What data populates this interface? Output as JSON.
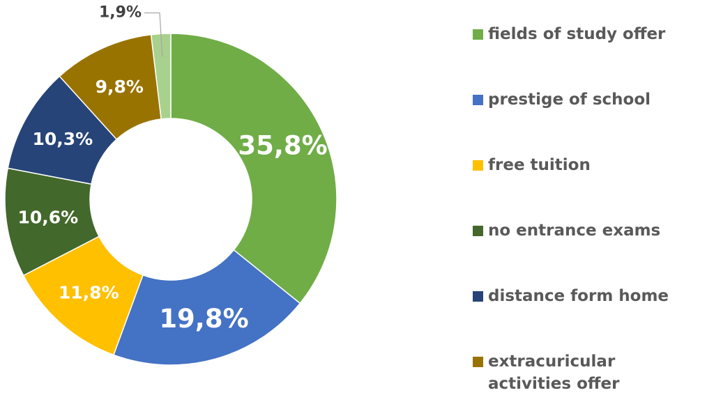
{
  "chart_data": {
    "type": "donut",
    "categories": [
      "fields of study offer",
      "prestige of school",
      "free tuition",
      "no entrance exams",
      "distance form home",
      "extracuricular activities offer",
      null
    ],
    "values": [
      35.8,
      19.8,
      11.8,
      10.6,
      10.3,
      9.8,
      1.9
    ],
    "value_labels": [
      "35,8%",
      "19,8%",
      "11,8%",
      "10,6%",
      "10,3%",
      "9,8%",
      "1,9%"
    ],
    "colors": [
      "#70ad47",
      "#4472c4",
      "#ffc000",
      "#43682b",
      "#264478",
      "#997300",
      "#a9d18e"
    ],
    "legend": "right"
  }
}
